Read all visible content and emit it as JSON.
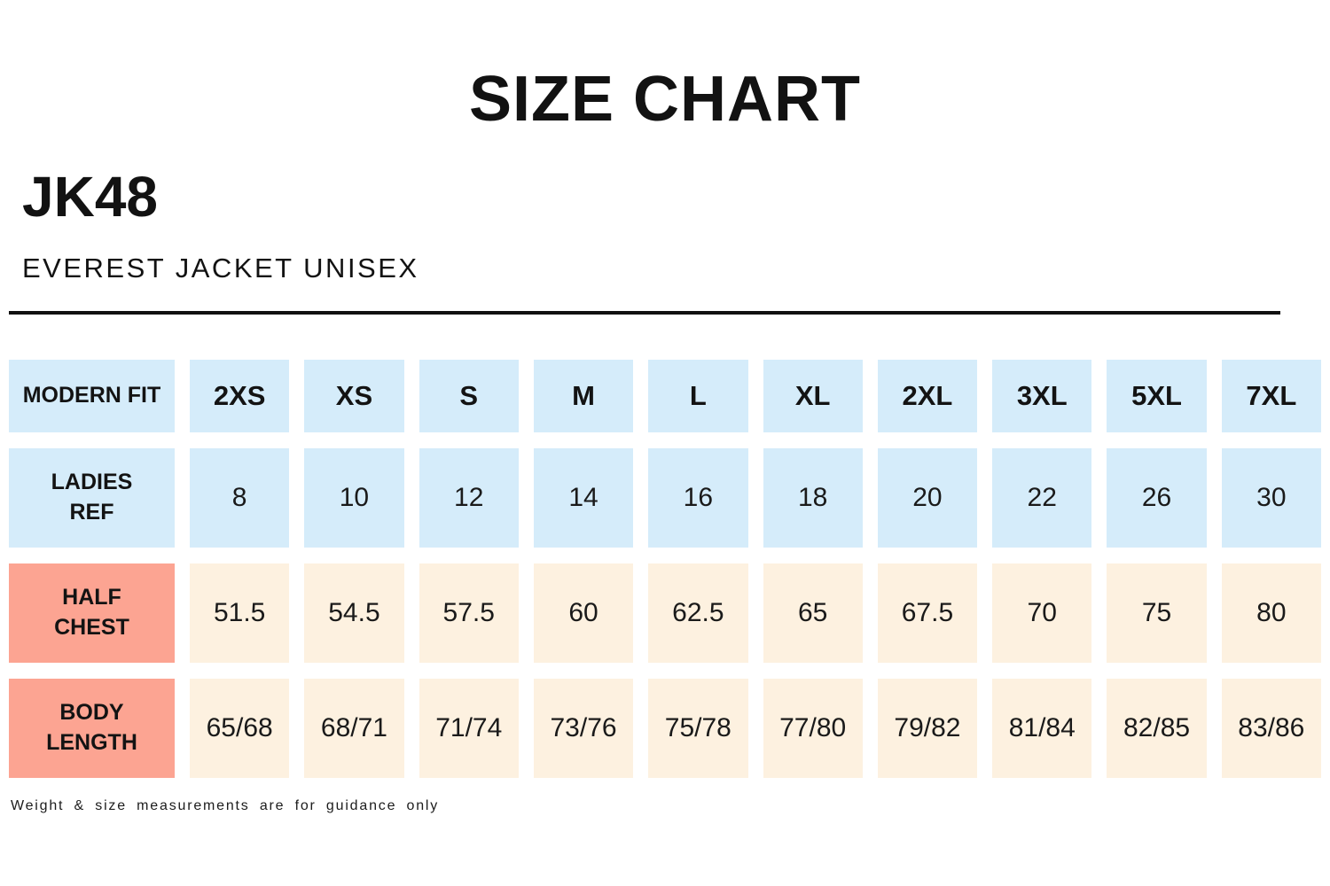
{
  "page": {
    "title": "SIZE CHART",
    "product_code": "JK48",
    "product_name": "EVEREST JACKET UNISEX",
    "footnote": "Weight & size measurements are for guidance only"
  },
  "colors": {
    "header_blue": "#d5ecfa",
    "rowhead_salmon": "#fca492",
    "value_cream": "#fdf1e0",
    "text": "#121212"
  },
  "chart_data": {
    "type": "table",
    "title": "SIZE CHART",
    "subtitle": "JK48 EVEREST JACKET UNISEX",
    "rows": [
      {
        "header": "MODERN FIT",
        "values": [
          "2XS",
          "XS",
          "S",
          "M",
          "L",
          "XL",
          "2XL",
          "3XL",
          "5XL",
          "7XL"
        ]
      },
      {
        "header": "LADIES\nREF",
        "values": [
          "8",
          "10",
          "12",
          "14",
          "16",
          "18",
          "20",
          "22",
          "26",
          "30"
        ]
      },
      {
        "header": "HALF\nCHEST",
        "values": [
          "51.5",
          "54.5",
          "57.5",
          "60",
          "62.5",
          "65",
          "67.5",
          "70",
          "75",
          "80"
        ]
      },
      {
        "header": "BODY\nLENGTH",
        "values": [
          "65/68",
          "68/71",
          "71/74",
          "73/76",
          "75/78",
          "77/80",
          "79/82",
          "81/84",
          "82/85",
          "83/86"
        ]
      }
    ]
  }
}
